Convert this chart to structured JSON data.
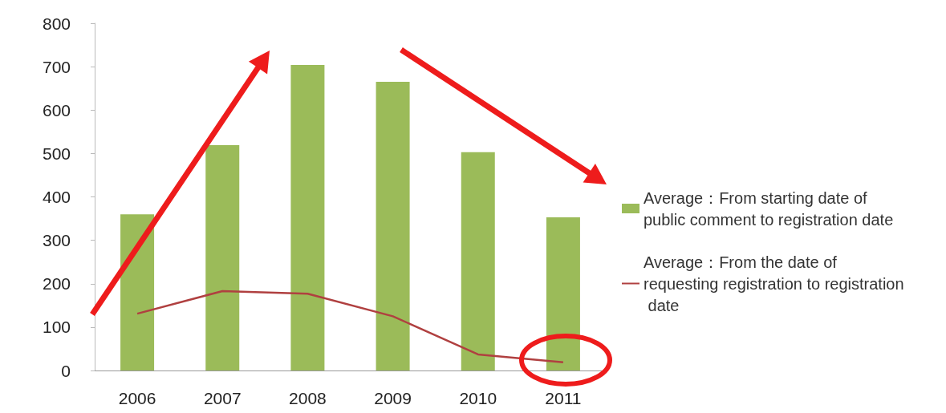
{
  "chart_data": {
    "type": "bar",
    "categories": [
      "2006",
      "2007",
      "2008",
      "2009",
      "2010",
      "2011"
    ],
    "series": [
      {
        "name": "Average：From starting date of public comment to registration date",
        "color": "#9bbb59",
        "values": [
          360,
          519,
          704,
          665,
          503,
          353
        ]
      },
      {
        "name": "Average：From the date of requesting registration to registration date",
        "type": "line",
        "color": "#b04040",
        "values": [
          131,
          183,
          177,
          125,
          37,
          19
        ]
      }
    ],
    "ylim": [
      0,
      800
    ],
    "yticks": [
      0,
      100,
      200,
      300,
      400,
      500,
      600,
      700,
      800
    ],
    "grid": false,
    "legend": "right",
    "marker": "none"
  }
}
